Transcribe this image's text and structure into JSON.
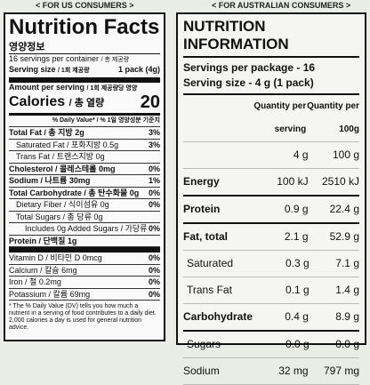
{
  "left": {
    "heading": "< FOR US CONSUMERS >",
    "title": "Nutrition Facts",
    "title_ko": "영양정보",
    "servings": "16 servings per container",
    "servings_ko": "/ 총 제공량",
    "serving_size": "Serving size",
    "serving_size_ko": "/ 1회 제공량",
    "serving_size_value": "1 pack (4g)",
    "amount_per_serving": "Amount per serving",
    "amount_per_serving_ko": "/ 1회 제공량당 영양",
    "calories": "Calories",
    "calories_ko": "/ 총 열량",
    "calories_value": "20",
    "dv_header": "% Daily Value*",
    "dv_header_ko": "/ % 1일 영양성분 기준치",
    "rows": [
      [
        "Total Fat / 총 지방",
        "2g",
        "3%"
      ],
      [
        "Saturated Fat / 포화지방",
        "0.5g",
        "3%"
      ],
      [
        "Trans Fat / 트랜스지방",
        "0g",
        ""
      ],
      [
        "Cholesterol / 콜레스테롤",
        "0mg",
        "0%"
      ],
      [
        "Sodium / 나트륨",
        "30mg",
        "1%"
      ],
      [
        "Total Carbohydrate / 총 탄수화물",
        "0g",
        "0%"
      ],
      [
        "Dietary Fiber / 식이섬유",
        "0g",
        "0%"
      ],
      [
        "Total Sugars / 총 당류",
        "0g",
        ""
      ],
      [
        "Includes 0g Added Sugars / 가당류",
        "",
        "0%"
      ],
      [
        "Protein / 단백질",
        "1g",
        ""
      ]
    ],
    "micros": [
      [
        "Vitamin D / 비타민 D",
        "0mcg",
        "0%"
      ],
      [
        "Calcium / 칼슘",
        "6mg",
        "0%"
      ],
      [
        "Iron / 철",
        "0.2mg",
        "0%"
      ],
      [
        "Potassium / 칼륨",
        "69mg",
        "0%"
      ]
    ],
    "footnote": "* The % Daily Value (DV) tells you how much a nutrient in a serving of food contributes to a daily diet. 2,000 calories a day is used for general nutrition advice."
  },
  "right": {
    "heading": "< FOR AUSTRALIAN CONSUMERS >",
    "title": "NUTRITION INFORMATION",
    "servings": "Servings per package - 16",
    "serving_size": "Serving size - 4 g (1 pack)",
    "col1": "Quantity per serving",
    "col2": "Quantity per 100g",
    "rows": [
      [
        "",
        "4 g",
        "100 g"
      ],
      [
        "Energy",
        "100 kJ",
        "2510 kJ"
      ],
      [
        "Protein",
        "0.9 g",
        "22.4 g"
      ],
      [
        "Fat, total",
        "2.1 g",
        "52.9 g"
      ],
      [
        "Saturated",
        "0.3 g",
        "7.1 g"
      ],
      [
        "Trans Fat",
        "0.1 g",
        "1.4 g"
      ],
      [
        "Carbohydrate",
        "0.4 g",
        "8.9 g"
      ],
      [
        "Sugars",
        "0.0 g",
        "0.0 g"
      ],
      [
        "Sodium",
        "32 mg",
        "797 mg"
      ]
    ]
  }
}
